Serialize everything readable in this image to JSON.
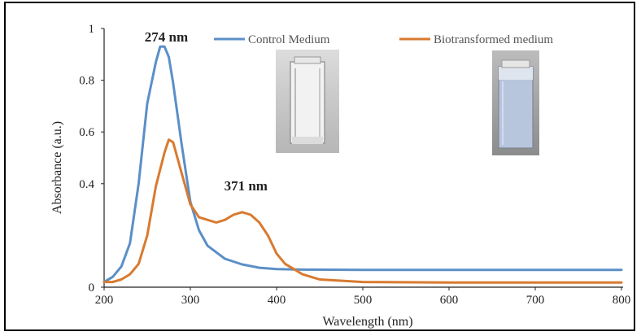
{
  "chart_data": {
    "type": "line",
    "xlabel": "Wavelength (nm)",
    "ylabel": "Absorbance (a.u.)",
    "xlim": [
      200,
      800
    ],
    "ylim": [
      0,
      1
    ],
    "x_ticks": [
      200,
      300,
      400,
      500,
      600,
      700,
      800
    ],
    "y_ticks": [
      {
        "value": 0,
        "label": "0"
      },
      {
        "value": 0.4,
        "label": "0.4"
      },
      {
        "value": 0.6,
        "label": "0.6"
      },
      {
        "value": 0.8,
        "label": "0.8"
      },
      {
        "value": 1,
        "label": "1"
      }
    ],
    "legend_position": "top-right",
    "series": [
      {
        "name": "Control Medium",
        "color": "#5b8fc7",
        "points": [
          [
            200,
            0.02
          ],
          [
            210,
            0.04
          ],
          [
            220,
            0.08
          ],
          [
            230,
            0.17
          ],
          [
            240,
            0.4
          ],
          [
            250,
            0.71
          ],
          [
            260,
            0.87
          ],
          [
            265,
            0.93
          ],
          [
            270,
            0.93
          ],
          [
            275,
            0.89
          ],
          [
            280,
            0.79
          ],
          [
            290,
            0.55
          ],
          [
            300,
            0.33
          ],
          [
            310,
            0.22
          ],
          [
            320,
            0.16
          ],
          [
            340,
            0.11
          ],
          [
            360,
            0.088
          ],
          [
            380,
            0.075
          ],
          [
            400,
            0.07
          ],
          [
            430,
            0.068
          ],
          [
            500,
            0.067
          ],
          [
            600,
            0.067
          ],
          [
            700,
            0.067
          ],
          [
            800,
            0.067
          ]
        ]
      },
      {
        "name": "Biotransformed medium",
        "color": "#d87a30",
        "points": [
          [
            200,
            0.02
          ],
          [
            210,
            0.02
          ],
          [
            220,
            0.03
          ],
          [
            230,
            0.05
          ],
          [
            240,
            0.09
          ],
          [
            250,
            0.2
          ],
          [
            260,
            0.39
          ],
          [
            270,
            0.52
          ],
          [
            275,
            0.57
          ],
          [
            280,
            0.56
          ],
          [
            290,
            0.44
          ],
          [
            300,
            0.32
          ],
          [
            310,
            0.27
          ],
          [
            320,
            0.26
          ],
          [
            330,
            0.25
          ],
          [
            340,
            0.26
          ],
          [
            350,
            0.28
          ],
          [
            360,
            0.29
          ],
          [
            370,
            0.28
          ],
          [
            380,
            0.25
          ],
          [
            390,
            0.2
          ],
          [
            400,
            0.13
          ],
          [
            410,
            0.09
          ],
          [
            420,
            0.07
          ],
          [
            430,
            0.05
          ],
          [
            450,
            0.03
          ],
          [
            500,
            0.02
          ],
          [
            600,
            0.018
          ],
          [
            700,
            0.018
          ],
          [
            800,
            0.018
          ]
        ]
      }
    ],
    "annotations": [
      {
        "text": "274 nm",
        "x": 274,
        "y": 0.965
      },
      {
        "text": "371 nm",
        "x": 371,
        "y": 0.39
      }
    ]
  },
  "illustrations": [
    {
      "name": "control-cuvette-photo",
      "description": "clear cuvette"
    },
    {
      "name": "biotransformed-cuvette-photo",
      "description": "cloudy cuvette"
    }
  ]
}
